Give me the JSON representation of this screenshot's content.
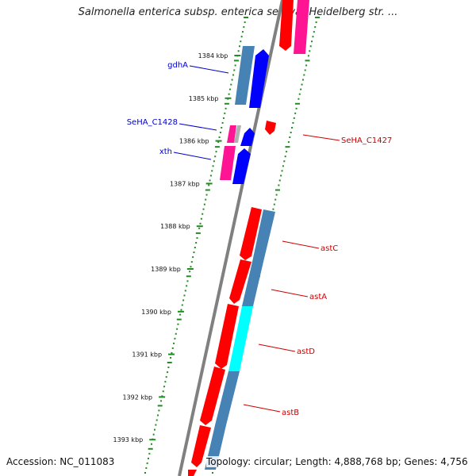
{
  "title": "Salmonella enterica subsp. enterica serovar Heidelberg str. ...",
  "footer": {
    "accession": "Accession: NC_011083",
    "topology": "Topology: circular; Length: 4,888,768 bp; Genes: 4,756"
  },
  "colors": {
    "backbone": "#808080",
    "forward_gene": "#0000ff",
    "reverse_gene": "#ff0000",
    "pink_gene": "#ff1493",
    "steel_gene": "#4682b4",
    "cyan_gene": "#00ffff",
    "gray_gene": "#a0a0a0",
    "tick_mark": "#228b22",
    "left_label": "#0000cc",
    "right_label": "#cc0000"
  },
  "ticks": [
    {
      "kbp": 1384,
      "label": "1384 kbp"
    },
    {
      "kbp": 1385,
      "label": "1385 kbp"
    },
    {
      "kbp": 1386,
      "label": "1386 kbp"
    },
    {
      "kbp": 1387,
      "label": "1387 kbp"
    },
    {
      "kbp": 1388,
      "label": "1388 kbp"
    },
    {
      "kbp": 1389,
      "label": "1389 kbp"
    },
    {
      "kbp": 1390,
      "label": "1390 kbp"
    },
    {
      "kbp": 1391,
      "label": "1391 kbp"
    },
    {
      "kbp": 1392,
      "label": "1392 kbp"
    },
    {
      "kbp": 1393,
      "label": "1393 kbp"
    }
  ],
  "left_labels": [
    {
      "text": "gdhA"
    },
    {
      "text": "SeHA_C1428"
    },
    {
      "text": "xth"
    }
  ],
  "right_labels": [
    {
      "text": "SeHA_C1427"
    },
    {
      "text": "astC"
    },
    {
      "text": "astA"
    },
    {
      "text": "astD"
    },
    {
      "text": "astB"
    }
  ]
}
